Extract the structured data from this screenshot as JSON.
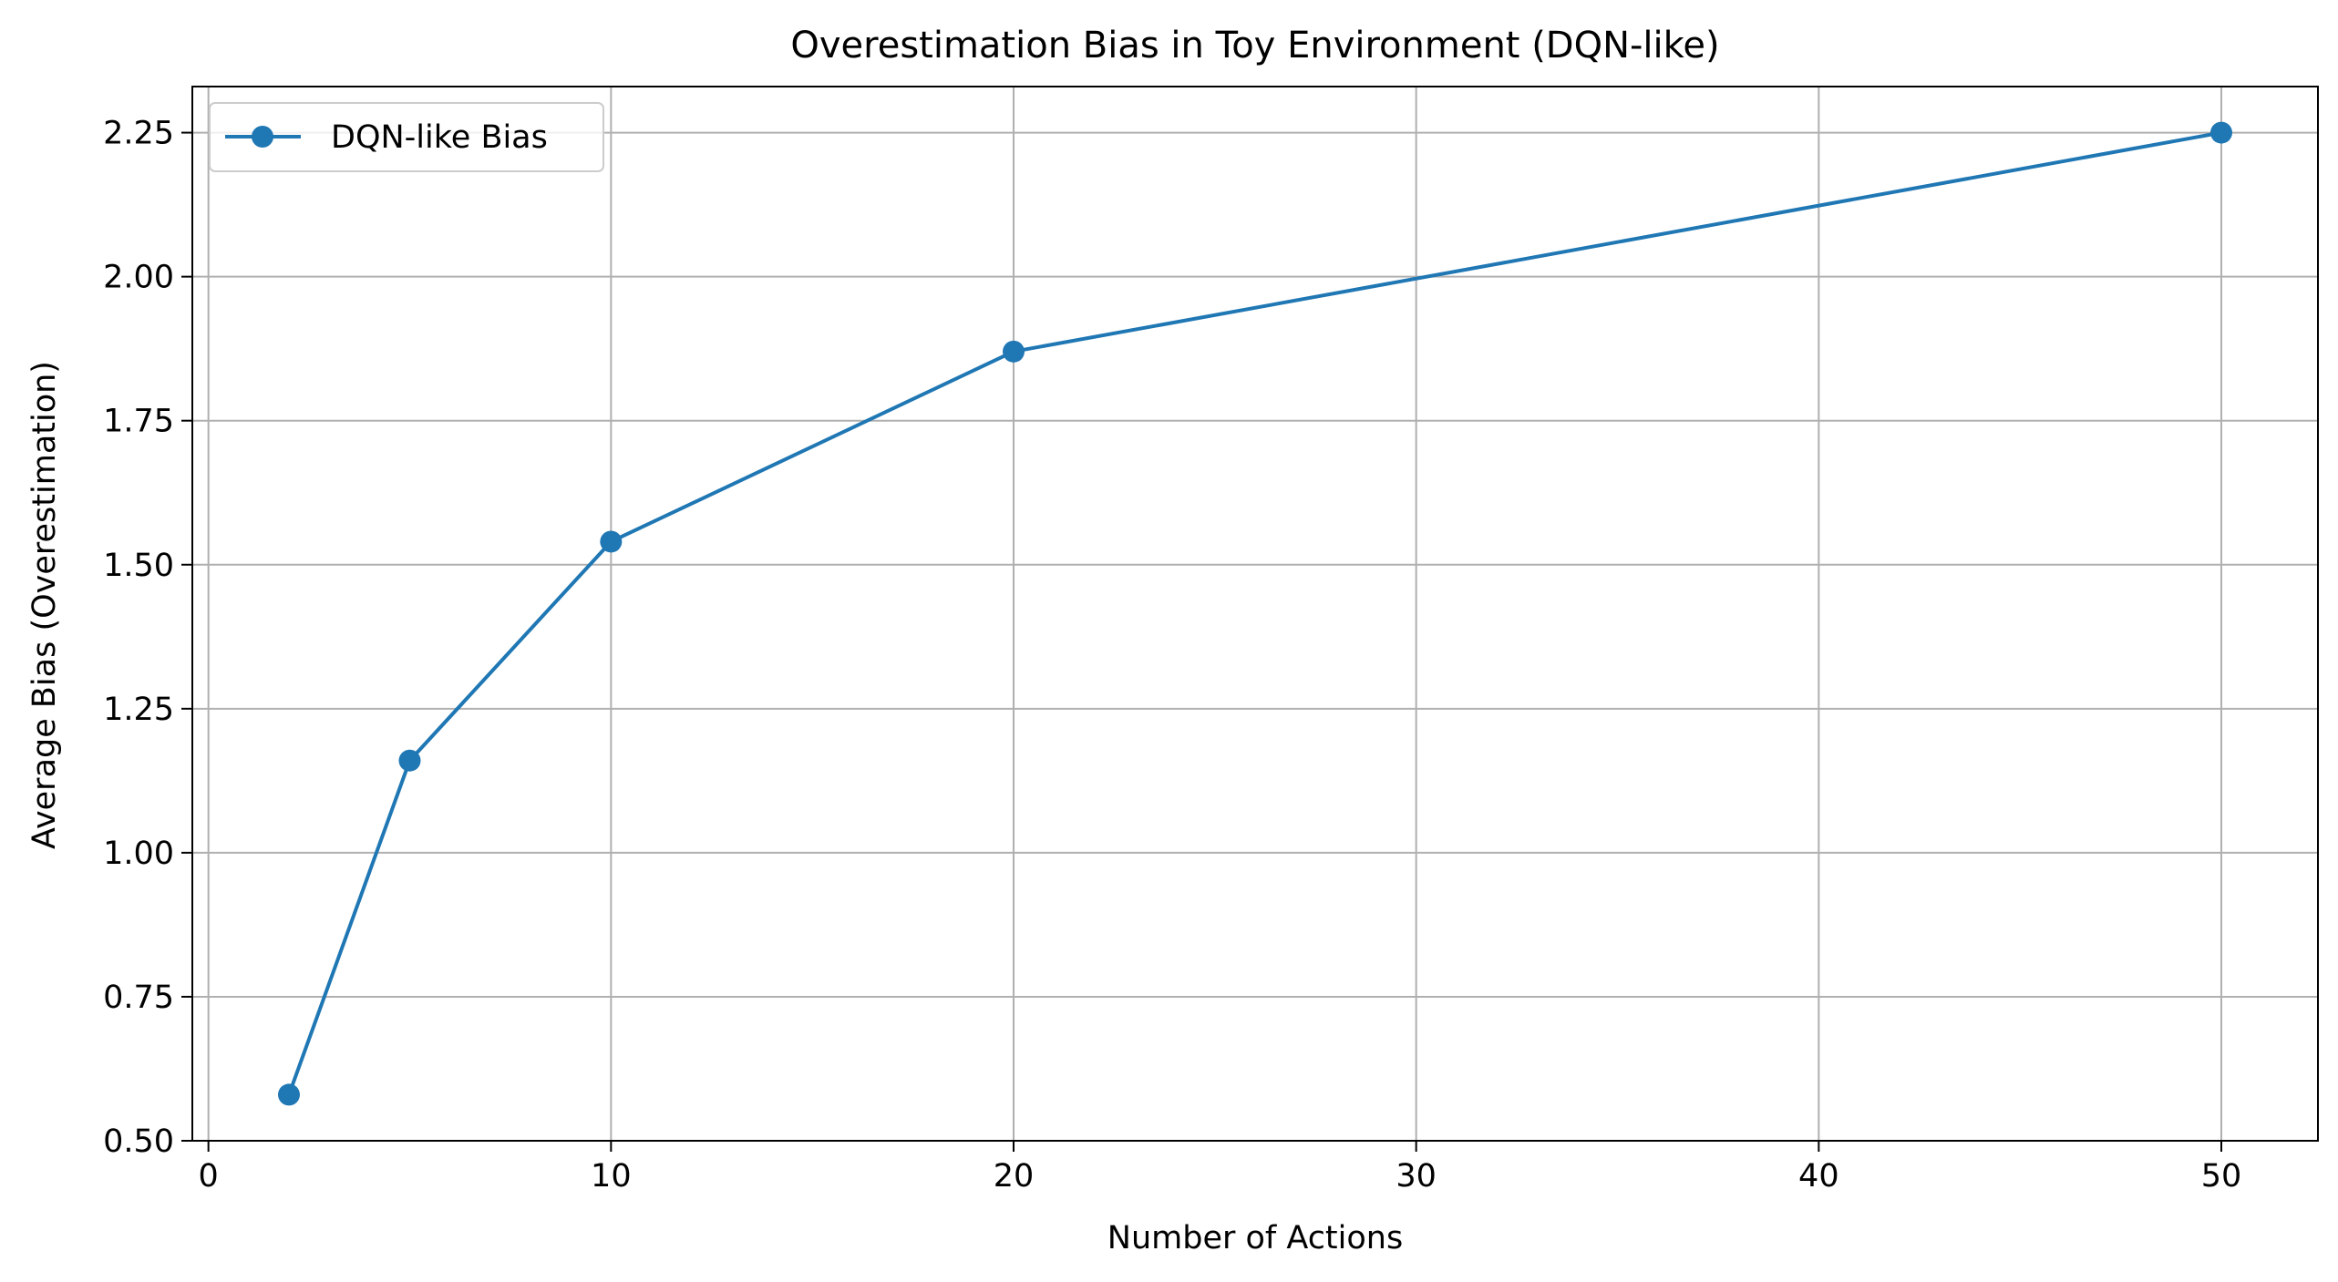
{
  "chart_data": {
    "type": "line",
    "title": "Overestimation Bias in Toy Environment (DQN-like)",
    "xlabel": "Number of Actions",
    "ylabel": "Average Bias (Overestimation)",
    "xlim": [
      -0.4,
      52.4
    ],
    "ylim": [
      0.5,
      2.33
    ],
    "xticks": [
      0,
      10,
      20,
      30,
      40,
      50
    ],
    "xtick_labels": [
      "0",
      "10",
      "20",
      "30",
      "40",
      "50"
    ],
    "yticks": [
      0.5,
      0.75,
      1.0,
      1.25,
      1.5,
      1.75,
      2.0,
      2.25
    ],
    "ytick_labels": [
      "0.50",
      "0.75",
      "1.00",
      "1.25",
      "1.50",
      "1.75",
      "2.00",
      "2.25"
    ],
    "grid": true,
    "legend_position": "top-left",
    "series": [
      {
        "name": "DQN-like Bias",
        "color": "#1f77b4",
        "marker": "circle",
        "x": [
          2,
          5,
          10,
          20,
          50
        ],
        "y": [
          0.58,
          1.16,
          1.54,
          1.87,
          2.25
        ]
      }
    ]
  }
}
